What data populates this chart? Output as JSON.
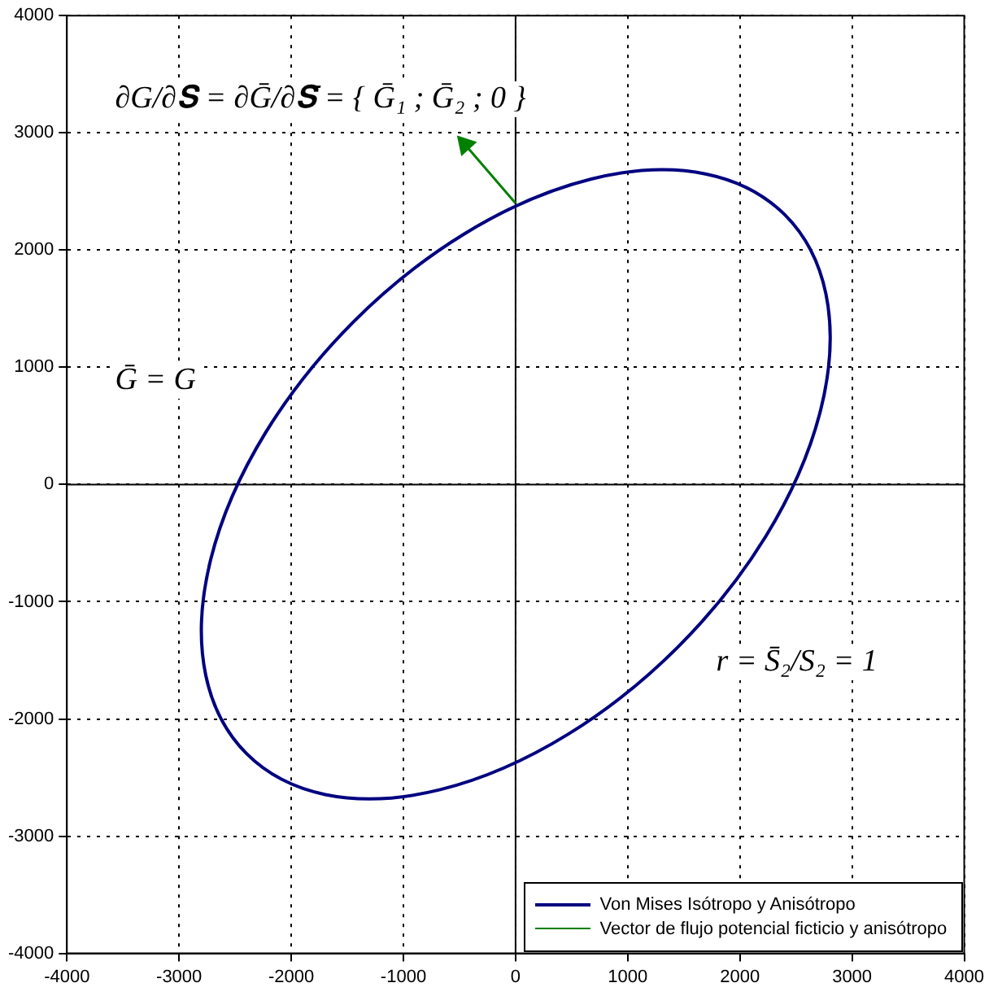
{
  "chart_data": {
    "type": "line",
    "xlim": [
      -4000,
      4000
    ],
    "xticks": [
      -4000,
      -3000,
      -2000,
      -1000,
      0,
      1000,
      2000,
      3000,
      4000
    ],
    "ylim": [
      -4000,
      4000
    ],
    "yticks": [
      -4000,
      -3000,
      -2000,
      -1000,
      0,
      1000,
      2000,
      3000,
      4000
    ],
    "grid": true,
    "legend": "bottom right",
    "annotations": [
      "∂G/∂𝐒 = ∂Ḡ/∂𝐒̄ = { Ḡ₁ ; Ḡ₂ ; 0 }",
      "Ḡ = G",
      "r = S̄₂/S₂ = 1",
      "Von Mises Isótropo y Anisótropo"
    ],
    "series": [
      {
        "name": "Vector de flujo potencial ficticio y anisótropo",
        "color": "#008000",
        "marker": "triangle",
        "x": [
          0,
          -450
        ],
        "values": [
          2400,
          2900
        ]
      }
    ]
  }
}
